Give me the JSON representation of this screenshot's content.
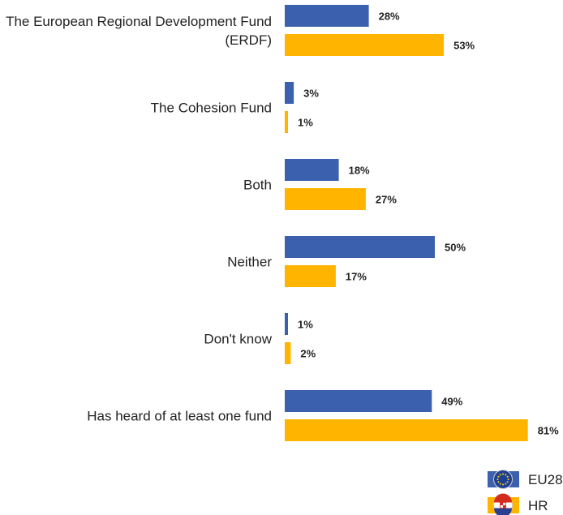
{
  "chart_data": {
    "type": "bar",
    "orientation": "horizontal",
    "categories": [
      [
        "The European Regional Development Fund",
        "(ERDF)"
      ],
      [
        "The Cohesion Fund"
      ],
      [
        "Both"
      ],
      [
        "Neither"
      ],
      [
        "Don't know"
      ],
      [
        "Has heard of at least one fund"
      ]
    ],
    "series": [
      {
        "name": "EU28",
        "color": "#3a60ae",
        "values": [
          28,
          3,
          18,
          50,
          1,
          49
        ],
        "labels": [
          "28%",
          "3%",
          "18%",
          "50%",
          "1%",
          "49%"
        ]
      },
      {
        "name": "HR",
        "color": "#ffb400",
        "values": [
          53,
          1,
          27,
          17,
          2,
          81
        ],
        "labels": [
          "53%",
          "1%",
          "27%",
          "17%",
          "2%",
          "81%"
        ]
      }
    ],
    "xlim": [
      0,
      100
    ],
    "unit": "%",
    "grid": false,
    "legend_position": "bottom-right",
    "legend_icons": [
      "eu-flag-icon",
      "croatia-flag-icon"
    ]
  }
}
